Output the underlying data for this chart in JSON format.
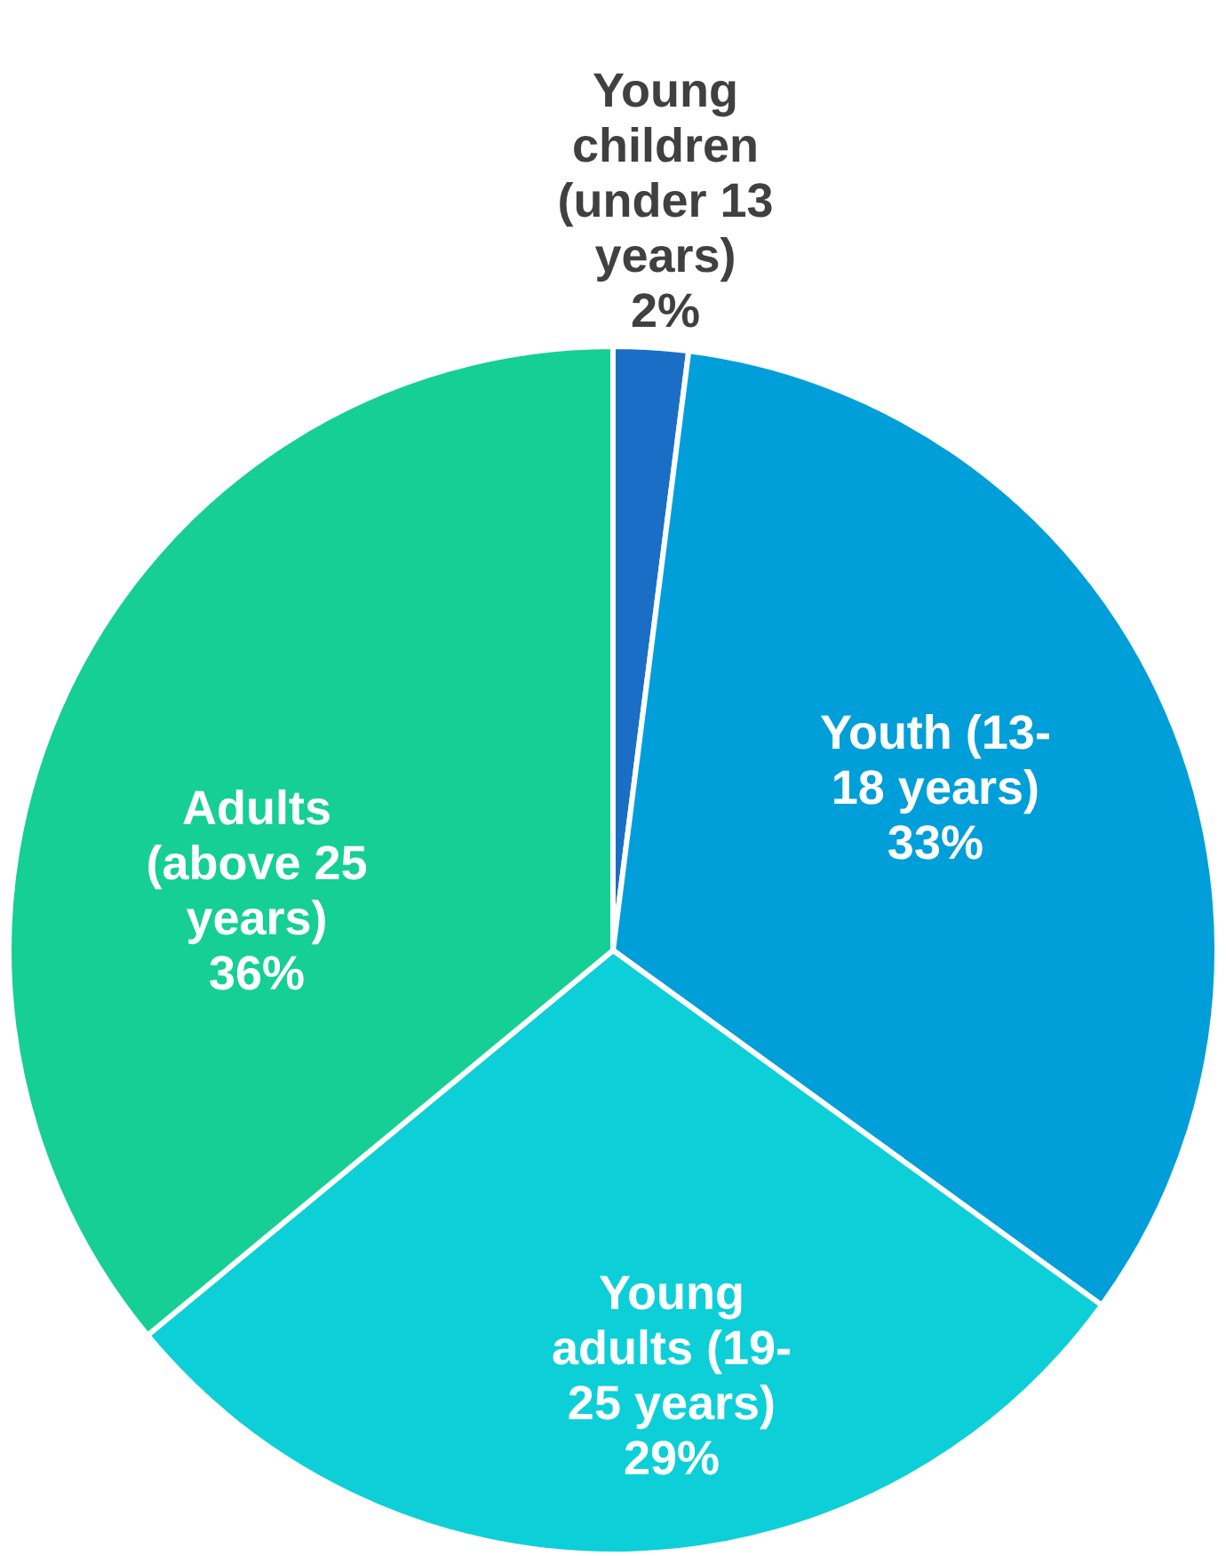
{
  "chart_data": {
    "type": "pie",
    "categories": [
      "Young children (under 13 years)",
      "Youth (13-18 years)",
      "Young adults (19-25 years)",
      "Adults (above 25 years)"
    ],
    "values": [
      2,
      33,
      29,
      36
    ],
    "value_labels": [
      "2%",
      "33%",
      "29%",
      "36%"
    ],
    "colors": [
      "#1a6ec6",
      "#019fd9",
      "#0dcfd8",
      "#15cf95"
    ],
    "legend": false
  }
}
